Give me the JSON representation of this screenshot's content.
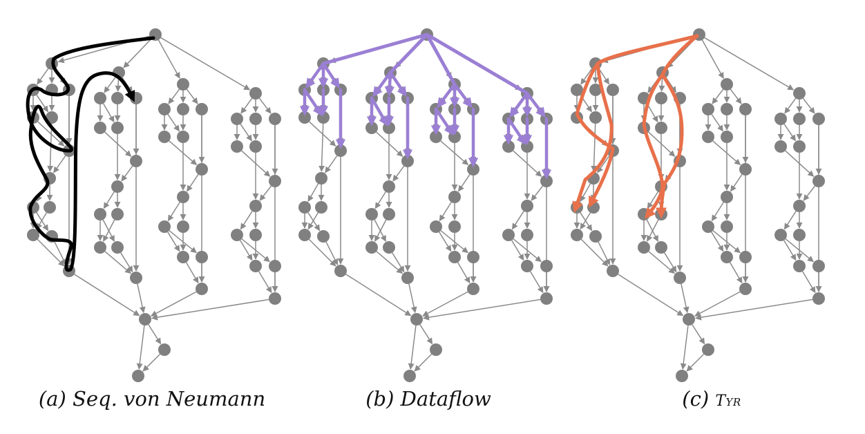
{
  "panels": [
    {
      "id": "a",
      "label": "(a)",
      "title": "Seq. von Neumann",
      "overlay_color": "#000000",
      "overlay_style": "sequential-path"
    },
    {
      "id": "b",
      "label": "(b)",
      "title": "Dataflow",
      "overlay_color": "#9b7fd4",
      "overlay_style": "fanout-tree"
    },
    {
      "id": "c",
      "label": "(c)",
      "title": "Tyr",
      "overlay_color": "#e8704a",
      "overlay_style": "parallel-paths"
    }
  ],
  "colors": {
    "node": "#808080",
    "edge": "#8a8a8a"
  }
}
